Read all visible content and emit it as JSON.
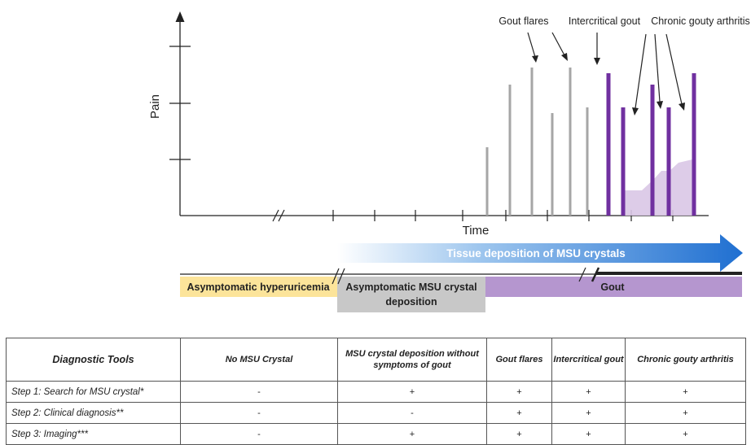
{
  "chart": {
    "ylabel": "Pain",
    "xlabel": "Time",
    "annotations": {
      "gout_flares": "Gout flares",
      "intercritical": "Intercritical gout",
      "chronic": "Chronic gouty arthritis"
    }
  },
  "chart_data": {
    "type": "bar",
    "ylabel": "Pain",
    "xlabel": "Time",
    "series": [
      {
        "name": "Gout flares",
        "color": "#a6a6a6",
        "values": [
          1.2,
          2.3,
          2.6,
          1.8,
          2.6,
          1.9
        ]
      },
      {
        "name": "Chronic gouty arthritis",
        "color": "#7030a0",
        "values": [
          2.5,
          1.9,
          2.3,
          1.9,
          2.5
        ]
      }
    ],
    "chronic_area_color": "#d9c6e6"
  },
  "arrow": {
    "label": "Tissue deposition of MSU crystals",
    "color_start": "#ffffff",
    "color_end": "#1f6fd1"
  },
  "stages": [
    {
      "label": "Asymptomatic hyperuricemia",
      "color": "#fce49a"
    },
    {
      "label": "Asymptomatic MSU crystal deposition",
      "color": "#c8c8c8"
    },
    {
      "label": "Gout",
      "color": "#b596cf"
    }
  ],
  "table": {
    "headers": [
      "Diagnostic Tools",
      "No MSU Crystal",
      "MSU crystal deposition without symptoms of gout",
      "Gout flares",
      "Intercritical gout",
      "Chronic gouty arthritis"
    ],
    "rows": [
      {
        "label": "Step 1: Search for MSU crystal*",
        "cells": [
          "-",
          "+",
          "+",
          "+",
          "+"
        ]
      },
      {
        "label": "Step 2: Clinical diagnosis**",
        "cells": [
          "-",
          "-",
          "+",
          "+",
          "+"
        ]
      },
      {
        "label": "Step 3:  Imaging***",
        "cells": [
          "-",
          "+",
          "+",
          "+",
          "+"
        ]
      }
    ]
  }
}
